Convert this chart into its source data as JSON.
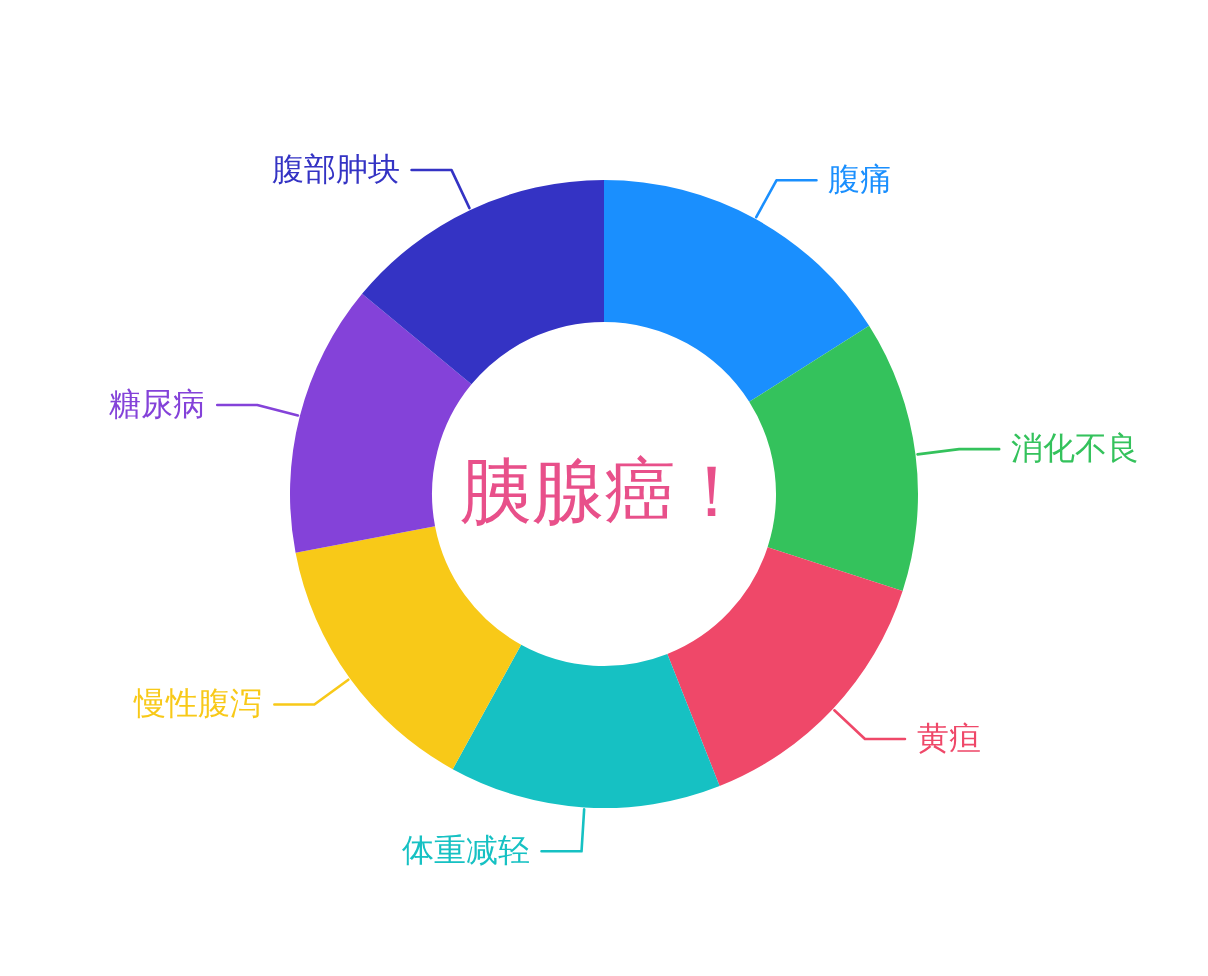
{
  "chart_data": {
    "type": "donut",
    "title": "胰腺癌！",
    "categories": [
      "腹痛",
      "消化不良",
      "黄疸",
      "体重减轻",
      "慢性腹泻",
      "糖尿病",
      "腹部肿块"
    ],
    "values": [
      16,
      14,
      14,
      14,
      14,
      14,
      14
    ],
    "colors": [
      "#1a8ffe",
      "#34c25c",
      "#ef4869",
      "#16c1c3",
      "#f8c918",
      "#8442d9",
      "#3433c4"
    ]
  }
}
